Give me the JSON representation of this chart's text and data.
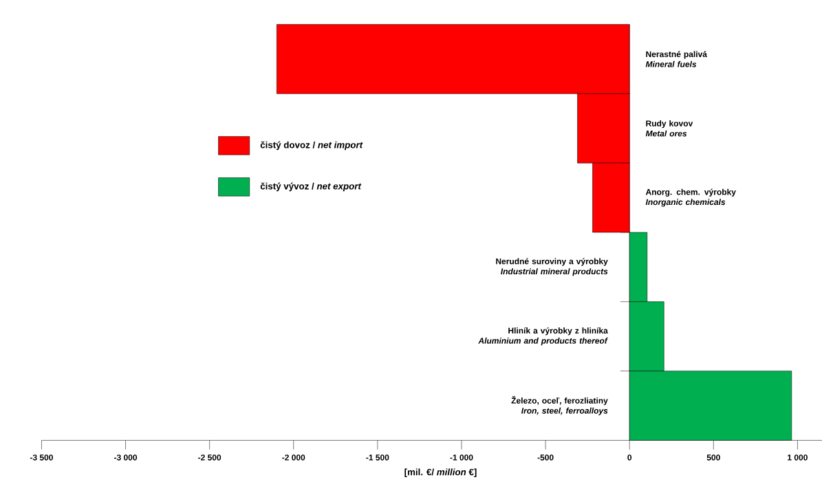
{
  "chart_data": {
    "type": "bar",
    "orientation": "horizontal",
    "categories": [
      "Nerastné palivá\n*Mineral fuels*",
      "Rudy kovov\n*Metal ores*",
      "Anorg. chem. výrobky\n*Inorganic chemicals*",
      "Nerudné suroviny a  výrobky\n*Industrial mineral products*",
      "Hliník a výrobky z hliníka\n*Aluminium and products thereof*",
      "Železo, oceľ, ferozliatiny\n*Iron, steel, ferroalloys*"
    ],
    "series": [
      {
        "name": "čistý dovoz / *net import*",
        "color": "#ff0000",
        "values": [
          -2100,
          -310,
          -220,
          null,
          null,
          null
        ]
      },
      {
        "name": "čistý vývoz / *net export*",
        "color": "#00b050",
        "values": [
          null,
          null,
          null,
          105,
          205,
          965
        ]
      }
    ],
    "xlabel": "[mil. €/ *million* €]",
    "xlim": [
      -3500,
      1250
    ],
    "xticks": [
      {
        "value": -3500,
        "label": "-3 500"
      },
      {
        "value": -3000,
        "label": "-3 000"
      },
      {
        "value": -2500,
        "label": "-2 500"
      },
      {
        "value": -2000,
        "label": "-2 000"
      },
      {
        "value": -1500,
        "label": "-1 500"
      },
      {
        "value": -1000,
        "label": "-1 000"
      },
      -500,
      0,
      500,
      {
        "value": 1000,
        "label": "1 000"
      }
    ],
    "legend": "left",
    "grid": false
  }
}
